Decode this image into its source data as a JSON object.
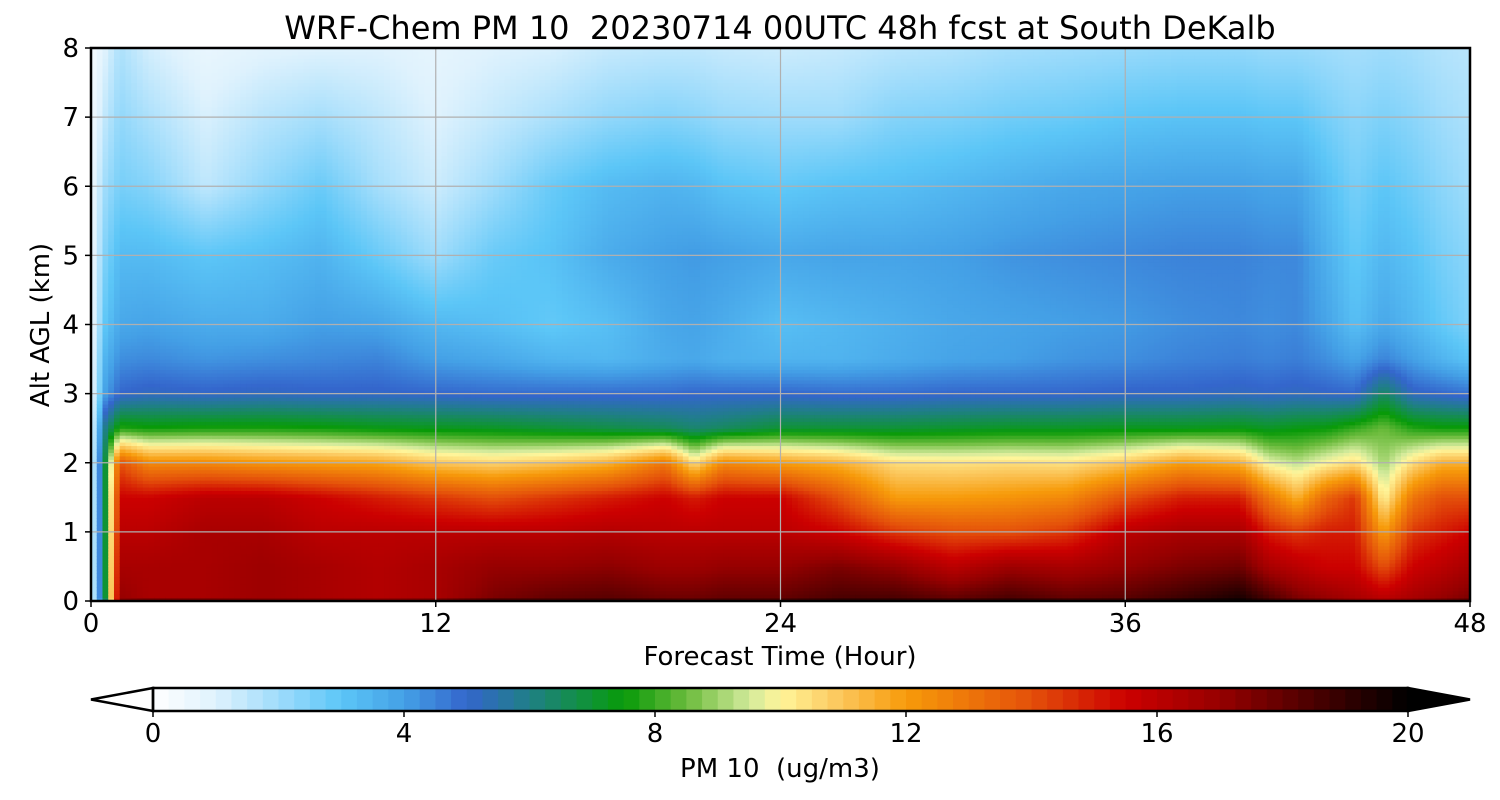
{
  "chart_data": {
    "type": "heatmap",
    "title": "WRF-Chem PM 10  20230714 00UTC 48h fcst at South DeKalb",
    "xlabel": "Forecast Time (Hour)",
    "ylabel": "Alt AGL (km)",
    "x_ticks": [
      "0",
      "12",
      "24",
      "36",
      "48"
    ],
    "y_ticks": [
      "0",
      "1",
      "2",
      "3",
      "4",
      "5",
      "6",
      "7",
      "8"
    ],
    "xlim": [
      0,
      48
    ],
    "ylim": [
      0,
      8
    ],
    "grid": true,
    "colorbar": {
      "label": "PM 10  (ug/m3)",
      "ticks": [
        "0",
        "4",
        "8",
        "12",
        "16",
        "20"
      ],
      "range": [
        0,
        20
      ],
      "extend": "both",
      "orientation": "horizontal",
      "placement": "bottom"
    },
    "colormap": [
      {
        "v": 0,
        "c": "#ffffff"
      },
      {
        "v": 1,
        "c": "#dff2fd"
      },
      {
        "v": 2,
        "c": "#9fdcfb"
      },
      {
        "v": 3,
        "c": "#5cc6f7"
      },
      {
        "v": 4,
        "c": "#44a0e6"
      },
      {
        "v": 5,
        "c": "#3466cc"
      },
      {
        "v": 6,
        "c": "#1f7f86"
      },
      {
        "v": 7,
        "c": "#0f9434"
      },
      {
        "v": 7.5,
        "c": "#089a08"
      },
      {
        "v": 8.5,
        "c": "#6bbb3c"
      },
      {
        "v": 9.5,
        "c": "#d2ea9b"
      },
      {
        "v": 10,
        "c": "#fff59a"
      },
      {
        "v": 11,
        "c": "#fbc458"
      },
      {
        "v": 12,
        "c": "#f79b0a"
      },
      {
        "v": 14,
        "c": "#e4500a"
      },
      {
        "v": 15.5,
        "c": "#cc0000"
      },
      {
        "v": 17,
        "c": "#960000"
      },
      {
        "v": 18.5,
        "c": "#4a0000"
      },
      {
        "v": 20,
        "c": "#000000"
      }
    ],
    "times": [
      0,
      0.5,
      1,
      2,
      4,
      6,
      8,
      10,
      12,
      14,
      16,
      18,
      20,
      21,
      22,
      24,
      26,
      28,
      30,
      32,
      34,
      36,
      38,
      40,
      41,
      42,
      43,
      44,
      45,
      46,
      47,
      48
    ],
    "altitudes": [
      0,
      0.05,
      0.5,
      1,
      1.5,
      2,
      2.5,
      3,
      3.5,
      4,
      5,
      6,
      7,
      8
    ],
    "values": [
      [
        0.5,
        0.5,
        0.5,
        0.5,
        0.5,
        0.5,
        0.5,
        0.5,
        0.5,
        0.5,
        0.5,
        0.5,
        0.4,
        0.3
      ],
      [
        6.0,
        7.0,
        7.0,
        7.0,
        7.0,
        7.0,
        6.0,
        4.0,
        3.5,
        3.0,
        2.5,
        2.0,
        1.5,
        1.0
      ],
      [
        17.5,
        17.0,
        16.5,
        16.0,
        15.5,
        14.0,
        7.8,
        5.0,
        4.3,
        3.8,
        3.3,
        2.6,
        2.2,
        1.8
      ],
      [
        18.5,
        16.5,
        16.5,
        16.0,
        15.5,
        12.5,
        7.6,
        5.2,
        4.4,
        3.9,
        3.3,
        2.4,
        1.8,
        1.2
      ],
      [
        18.5,
        16.5,
        16.5,
        16.5,
        16.0,
        12.5,
        7.7,
        5.1,
        4.2,
        3.7,
        3.0,
        1.5,
        1.1,
        0.7
      ],
      [
        18.0,
        16.8,
        16.8,
        16.5,
        16.0,
        12.2,
        7.7,
        5.2,
        4.3,
        3.7,
        3.2,
        2.2,
        1.6,
        0.9
      ],
      [
        18.0,
        16.5,
        16.5,
        16.0,
        15.5,
        12.0,
        7.6,
        5.1,
        4.4,
        4.0,
        3.5,
        2.8,
        1.9,
        1.0
      ],
      [
        18.0,
        16.2,
        16.2,
        16.0,
        15.0,
        11.8,
        7.4,
        5.1,
        4.5,
        3.9,
        2.8,
        1.9,
        1.5,
        1.0
      ],
      [
        18.3,
        16.5,
        16.5,
        16.0,
        14.5,
        11.0,
        7.3,
        5.0,
        4.0,
        3.4,
        2.0,
        1.3,
        1.0,
        0.8
      ],
      [
        19.2,
        17.5,
        17.0,
        16.0,
        14.0,
        10.7,
        7.2,
        4.9,
        3.8,
        3.2,
        2.8,
        2.0,
        1.4,
        1.0
      ],
      [
        19.0,
        18.0,
        17.0,
        16.0,
        14.5,
        11.0,
        7.0,
        4.9,
        3.5,
        2.9,
        3.1,
        2.8,
        1.8,
        1.1
      ],
      [
        19.2,
        18.2,
        17.2,
        16.2,
        15.0,
        11.5,
        6.8,
        4.9,
        3.4,
        3.2,
        3.7,
        3.3,
        2.2,
        1.4
      ],
      [
        19.0,
        17.8,
        16.8,
        16.0,
        15.5,
        13.0,
        6.6,
        4.9,
        3.7,
        3.8,
        4.0,
        3.5,
        2.4,
        1.5
      ],
      [
        18.8,
        17.8,
        16.8,
        16.0,
        15.0,
        10.5,
        6.3,
        5.0,
        3.8,
        3.9,
        4.1,
        3.4,
        2.3,
        1.5
      ],
      [
        19.0,
        18.0,
        17.0,
        16.0,
        15.5,
        12.5,
        6.5,
        5.0,
        3.6,
        3.7,
        4.0,
        3.1,
        2.1,
        1.4
      ],
      [
        19.0,
        18.0,
        17.0,
        16.0,
        15.5,
        12.0,
        7.0,
        5.0,
        3.5,
        3.2,
        3.8,
        2.9,
        2.0,
        1.3
      ],
      [
        19.5,
        18.5,
        17.5,
        15.5,
        14.0,
        11.5,
        7.0,
        4.9,
        3.5,
        3.4,
        3.9,
        3.1,
        2.0,
        1.4
      ],
      [
        19.5,
        18.5,
        17.0,
        14.5,
        12.0,
        10.5,
        7.0,
        4.9,
        3.7,
        3.6,
        3.9,
        3.2,
        2.4,
        1.6
      ],
      [
        19.2,
        18.0,
        16.0,
        14.0,
        12.0,
        10.4,
        7.1,
        5.0,
        3.9,
        3.8,
        4.0,
        3.4,
        2.5,
        1.7
      ],
      [
        19.5,
        18.5,
        16.8,
        14.0,
        12.2,
        10.5,
        7.2,
        5.0,
        4.0,
        3.9,
        4.2,
        3.6,
        2.7,
        1.9
      ],
      [
        19.3,
        18.0,
        16.5,
        14.5,
        12.5,
        10.4,
        7.2,
        5.0,
        4.2,
        4.0,
        4.3,
        3.8,
        2.8,
        2.0
      ],
      [
        19.5,
        18.2,
        17.0,
        16.0,
        14.0,
        11.0,
        7.3,
        5.1,
        4.3,
        4.1,
        4.4,
        3.9,
        3.0,
        2.1
      ],
      [
        19.8,
        18.8,
        17.5,
        16.5,
        15.0,
        12.0,
        7.3,
        5.1,
        4.5,
        4.3,
        4.5,
        4.0,
        3.1,
        2.2
      ],
      [
        20.0,
        19.5,
        17.8,
        16.5,
        15.0,
        11.5,
        7.4,
        5.2,
        4.6,
        4.4,
        4.5,
        4.0,
        3.1,
        2.2
      ],
      [
        19.2,
        18.5,
        16.5,
        15.0,
        13.0,
        9.8,
        7.2,
        5.1,
        4.5,
        4.3,
        4.4,
        3.9,
        3.0,
        2.1
      ],
      [
        18.5,
        17.5,
        16.0,
        14.5,
        11.5,
        9.3,
        7.4,
        5.2,
        4.6,
        4.4,
        4.4,
        3.9,
        3.0,
        2.1
      ],
      [
        18.0,
        17.0,
        15.5,
        15.0,
        13.5,
        10.0,
        7.5,
        5.1,
        4.3,
        3.9,
        3.6,
        3.2,
        2.6,
        2.0
      ],
      [
        17.5,
        16.5,
        15.5,
        15.0,
        14.5,
        10.5,
        8.0,
        5.0,
        3.9,
        3.2,
        2.9,
        2.6,
        2.3,
        1.9
      ],
      [
        17.0,
        16.0,
        14.0,
        12.0,
        10.0,
        9.0,
        8.5,
        6.5,
        4.5,
        3.8,
        3.4,
        3.0,
        2.5,
        2.0
      ],
      [
        17.5,
        16.5,
        15.5,
        14.5,
        13.0,
        10.5,
        7.8,
        5.2,
        4.0,
        3.4,
        3.1,
        2.7,
        2.3,
        1.9
      ],
      [
        18.0,
        17.0,
        16.0,
        15.0,
        14.0,
        11.5,
        7.6,
        5.0,
        3.5,
        2.9,
        2.6,
        2.3,
        2.0,
        1.7
      ],
      [
        18.5,
        17.5,
        16.5,
        15.5,
        14.0,
        11.5,
        7.6,
        4.8,
        3.1,
        2.5,
        2.3,
        2.0,
        1.8,
        1.6
      ]
    ]
  }
}
